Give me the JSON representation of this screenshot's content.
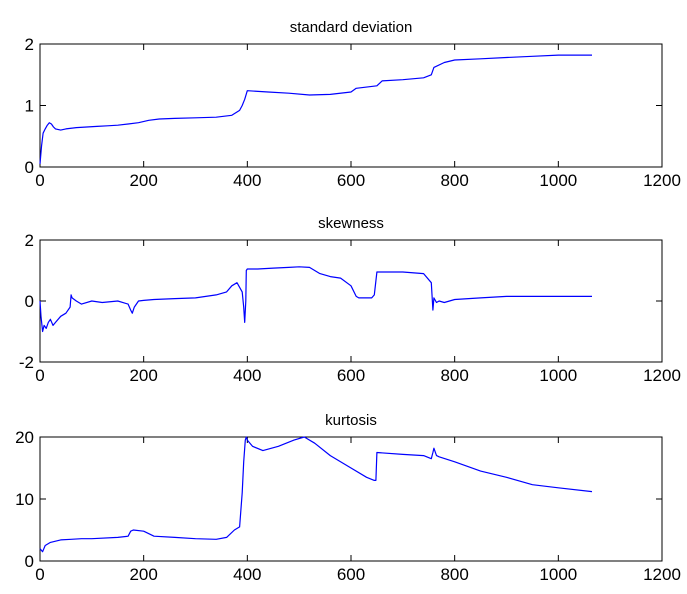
{
  "chart_data": [
    {
      "type": "line",
      "title": "standard deviation",
      "xlim": [
        0,
        1200
      ],
      "ylim": [
        0,
        2
      ],
      "xticks": [
        0,
        200,
        400,
        600,
        800,
        1000,
        1200
      ],
      "yticks": [
        0,
        1,
        2
      ],
      "series_color": "#0000ff",
      "series": [
        {
          "x": [
            0,
            3,
            6,
            10,
            14,
            18,
            22,
            26,
            30,
            40,
            50,
            70,
            90,
            110,
            130,
            150,
            170,
            190,
            210,
            230,
            260,
            300,
            340,
            370,
            385,
            390,
            395,
            400,
            440,
            480,
            520,
            560,
            600,
            610,
            650,
            660,
            700,
            740,
            755,
            760,
            780,
            800,
            850,
            900,
            950,
            1000,
            1065
          ],
          "y": [
            0.05,
            0.35,
            0.55,
            0.62,
            0.68,
            0.72,
            0.7,
            0.65,
            0.62,
            0.6,
            0.62,
            0.64,
            0.65,
            0.66,
            0.67,
            0.68,
            0.7,
            0.72,
            0.76,
            0.78,
            0.79,
            0.8,
            0.81,
            0.84,
            0.92,
            1.0,
            1.1,
            1.24,
            1.22,
            1.2,
            1.17,
            1.18,
            1.22,
            1.28,
            1.32,
            1.4,
            1.42,
            1.45,
            1.5,
            1.62,
            1.7,
            1.74,
            1.76,
            1.78,
            1.8,
            1.82,
            1.82
          ]
        }
      ]
    },
    {
      "type": "line",
      "title": "skewness",
      "xlim": [
        0,
        1200
      ],
      "ylim": [
        -2,
        2
      ],
      "xticks": [
        0,
        200,
        400,
        600,
        800,
        1000,
        1200
      ],
      "yticks": [
        -2,
        0,
        2
      ],
      "series_color": "#0000ff",
      "series": [
        {
          "x": [
            0,
            2,
            5,
            8,
            12,
            16,
            20,
            25,
            30,
            40,
            50,
            58,
            60,
            62,
            70,
            80,
            100,
            120,
            150,
            170,
            175,
            178,
            182,
            190,
            200,
            220,
            260,
            300,
            340,
            360,
            370,
            380,
            390,
            393,
            395,
            397,
            398,
            400,
            420,
            450,
            480,
            500,
            520,
            540,
            560,
            580,
            600,
            610,
            615,
            640,
            645,
            650,
            660,
            700,
            740,
            755,
            758,
            760,
            765,
            770,
            780,
            800,
            850,
            900,
            950,
            1000,
            1065
          ],
          "y": [
            0.0,
            -0.5,
            -1.0,
            -0.8,
            -0.9,
            -0.7,
            -0.6,
            -0.8,
            -0.7,
            -0.5,
            -0.4,
            -0.2,
            0.2,
            0.1,
            0.0,
            -0.1,
            0.0,
            -0.05,
            0.0,
            -0.1,
            -0.3,
            -0.4,
            -0.2,
            0.0,
            0.02,
            0.05,
            0.08,
            0.1,
            0.2,
            0.3,
            0.5,
            0.6,
            0.3,
            -0.2,
            -0.7,
            0.0,
            1.0,
            1.05,
            1.05,
            1.08,
            1.1,
            1.12,
            1.1,
            0.9,
            0.8,
            0.75,
            0.5,
            0.15,
            0.1,
            0.1,
            0.2,
            0.95,
            0.95,
            0.95,
            0.9,
            0.6,
            -0.3,
            0.1,
            -0.05,
            0.0,
            -0.05,
            0.05,
            0.1,
            0.15,
            0.15,
            0.15,
            0.15
          ]
        }
      ]
    },
    {
      "type": "line",
      "title": "kurtosis",
      "xlim": [
        0,
        1200
      ],
      "ylim": [
        0,
        20
      ],
      "xticks": [
        0,
        200,
        400,
        600,
        800,
        1000,
        1200
      ],
      "yticks": [
        0,
        10,
        20
      ],
      "series_color": "#0000ff",
      "series": [
        {
          "x": [
            0,
            5,
            10,
            20,
            30,
            40,
            60,
            80,
            100,
            150,
            170,
            175,
            180,
            200,
            220,
            260,
            300,
            340,
            360,
            375,
            385,
            390,
            393,
            396,
            398,
            400,
            410,
            430,
            460,
            490,
            510,
            530,
            560,
            600,
            630,
            645,
            648,
            650,
            700,
            740,
            755,
            758,
            760,
            765,
            770,
            800,
            850,
            900,
            950,
            1000,
            1065
          ],
          "y": [
            2.0,
            1.5,
            2.5,
            3.0,
            3.2,
            3.4,
            3.5,
            3.6,
            3.6,
            3.8,
            4.0,
            4.8,
            5.0,
            4.8,
            4.0,
            3.8,
            3.6,
            3.5,
            3.8,
            5.0,
            5.5,
            11.0,
            16.0,
            19.5,
            20.0,
            19.5,
            18.5,
            17.8,
            18.5,
            19.5,
            20.0,
            19.0,
            17.0,
            15.0,
            13.5,
            13.0,
            13.0,
            17.5,
            17.2,
            17.0,
            16.5,
            17.5,
            18.2,
            17.0,
            16.8,
            16.0,
            14.5,
            13.5,
            12.3,
            11.8,
            11.2
          ]
        }
      ]
    }
  ]
}
